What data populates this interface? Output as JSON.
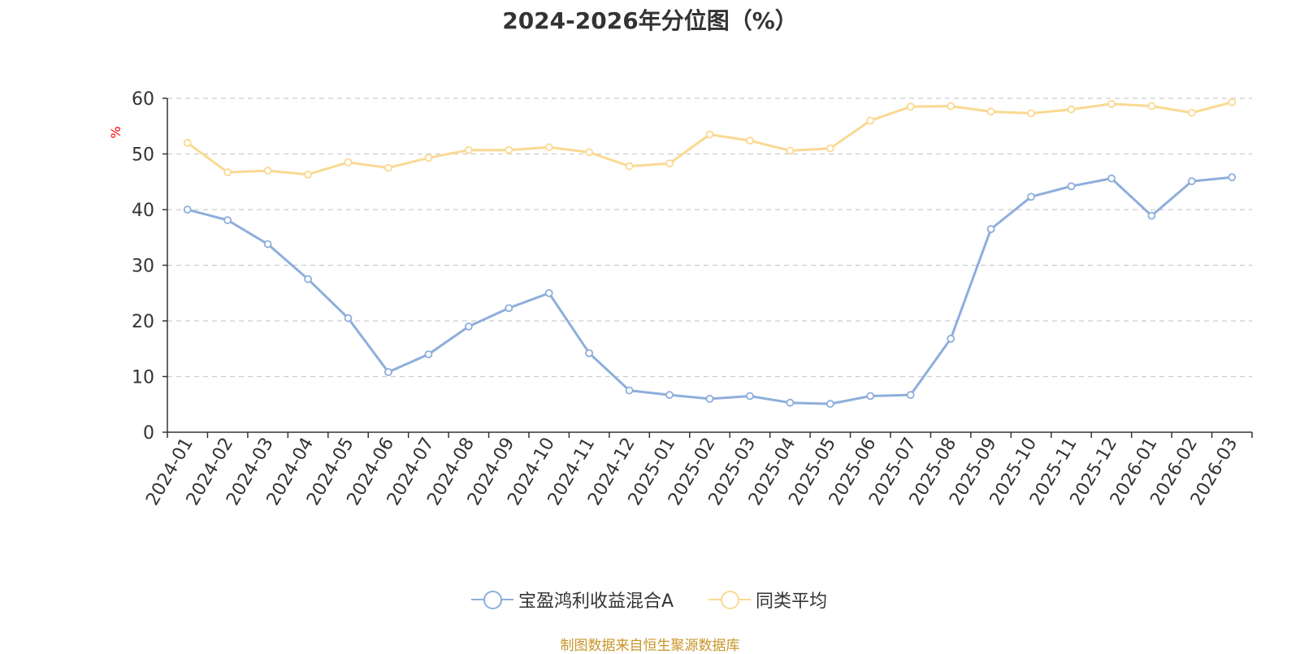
{
  "chart_data": {
    "type": "line",
    "title": "2024-2026年分位图（%）",
    "ylabel": "%",
    "xlabel": "",
    "ylim": [
      0,
      60
    ],
    "yticks": [
      0,
      10,
      20,
      30,
      40,
      50,
      60
    ],
    "grid": true,
    "legend_position": "bottom",
    "categories": [
      "2024-01",
      "2024-02",
      "2024-03",
      "2024-04",
      "2024-05",
      "2024-06",
      "2024-07",
      "2024-08",
      "2024-09",
      "2024-10",
      "2024-11",
      "2024-12",
      "2025-01",
      "2025-02",
      "2025-03",
      "2025-04",
      "2025-05",
      "2025-06",
      "2025-07",
      "2025-08",
      "2025-09",
      "2025-10",
      "2025-11",
      "2025-12",
      "2026-01",
      "2026-02",
      "2026-03"
    ],
    "series": [
      {
        "name": "宝盈鸿利收益混合A",
        "color": "#8eaedb",
        "values": [
          40.0,
          38.1,
          33.8,
          27.5,
          20.5,
          10.8,
          14.0,
          19.0,
          22.3,
          25.0,
          14.2,
          7.5,
          6.7,
          6.0,
          6.5,
          5.3,
          5.1,
          6.5,
          6.7,
          16.8,
          36.5,
          42.3,
          44.2,
          45.6,
          38.9,
          45.1,
          45.8
        ]
      },
      {
        "name": "同类平均",
        "color": "#fad992",
        "values": [
          52.0,
          46.7,
          47.0,
          46.3,
          48.5,
          47.5,
          49.3,
          50.7,
          50.7,
          51.2,
          50.3,
          47.8,
          48.3,
          53.5,
          52.4,
          50.6,
          51.0,
          56.0,
          58.5,
          58.6,
          57.6,
          57.3,
          58.0,
          59.0,
          58.6,
          57.4,
          59.3
        ]
      }
    ]
  },
  "source_note": "制图数据来自恒生聚源数据库",
  "colors": {
    "axis": "#333333",
    "grid": "#cccccc",
    "ylabel": "#ff0000",
    "source": "#c9952a"
  }
}
